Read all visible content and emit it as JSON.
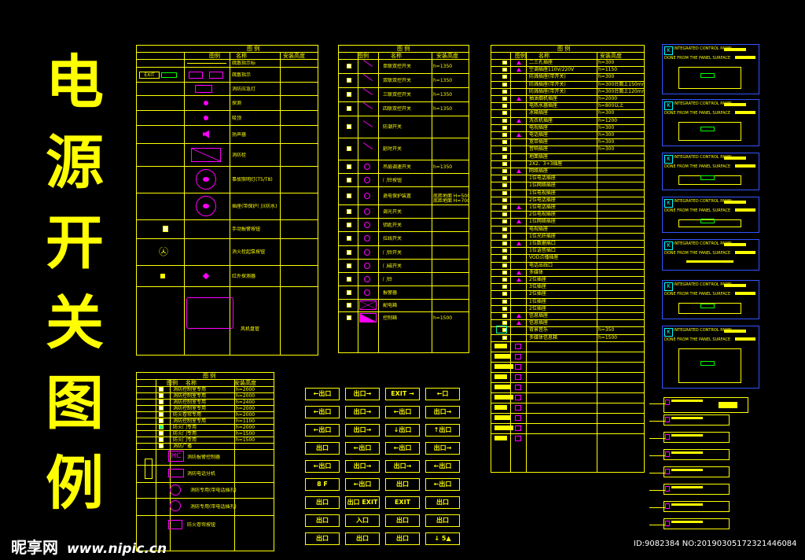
{
  "title_chars": [
    "电",
    "源",
    "开",
    "关",
    "图",
    "例"
  ],
  "legend_header": "图 例",
  "col_headers": {
    "symbol": "图例",
    "name": "名称",
    "install": "安装高度"
  },
  "table_a": {
    "rows": [
      {
        "name": "疏散指示标"
      },
      {
        "name": "疏散指示"
      },
      {
        "name": "消防应急灯"
      },
      {
        "name": "探测"
      },
      {
        "name": "吸顶"
      },
      {
        "name": "扬声器"
      },
      {
        "name": "消防栓"
      },
      {
        "name": "事故照明灯(T5/T8)"
      },
      {
        "name": "插座(带保护门)(防水)"
      },
      {
        "name": "手动报警按钮"
      },
      {
        "name": "消火栓起泵按钮"
      },
      {
        "name": "红外探测器"
      },
      {
        "name": "风机盘管"
      }
    ],
    "exit_label": "EXIT"
  },
  "table_b": {
    "rows": [
      {
        "name": "单联双控开关",
        "h": "h=1350"
      },
      {
        "name": "双联双控开关",
        "h": "h=1350"
      },
      {
        "name": "三联双控开关",
        "h": "h=1350"
      },
      {
        "name": "四联双控开关",
        "h": "h=1350"
      },
      {
        "name": "防潮开关",
        "h": ""
      },
      {
        "name": "延时开关",
        "h": ""
      },
      {
        "name": "吊扇调速开关",
        "h": "h=1350"
      },
      {
        "name": "门铃按钮",
        "h": ""
      },
      {
        "name": "退电保护装置",
        "h": "底距地面 H=500"
      },
      {
        "name": "调光开关",
        "h": ""
      },
      {
        "name": "钥匙开关",
        "h": ""
      },
      {
        "name": "拉线开关",
        "h": ""
      },
      {
        "name": "门铃开关",
        "h": ""
      },
      {
        "name": "门磁开关",
        "h": ""
      },
      {
        "name": "门铃",
        "h": ""
      },
      {
        "name": "报警器",
        "h": ""
      },
      {
        "name": "配电箱",
        "h": ""
      },
      {
        "name": "控制箱",
        "h": "h=1500"
      }
    ],
    "install_note2": "底距地面 H=700"
  },
  "table_c": {
    "rows": [
      {
        "name": "二三孔插座",
        "h": "h=300"
      },
      {
        "name": "空调插座110V/220V",
        "h": "h=1150"
      },
      {
        "name": "防溅插座(带开关)",
        "h": "h=300"
      },
      {
        "name": "防溅插座(带开关)",
        "h": "h=300台面上150mm"
      },
      {
        "name": "防溅插座(带开关)",
        "h": "h=300台面上120mm"
      },
      {
        "name": "抽油烟机插座",
        "h": "h=2000"
      },
      {
        "name": "电热水器插座",
        "h": "h=800以上"
      },
      {
        "name": "冰箱插座",
        "h": "h=300"
      },
      {
        "name": "洗衣机插座",
        "h": "h=1200"
      },
      {
        "name": "电视插座",
        "h": "h=300"
      },
      {
        "name": "电话插座",
        "h": "h=300"
      },
      {
        "name": "宽带插座",
        "h": "h=300"
      },
      {
        "name": "音响插座",
        "h": "h=300"
      },
      {
        "name": "地面插座",
        "h": ""
      },
      {
        "name": "2X2、3+3插座",
        "h": ""
      },
      {
        "name": "网络插座",
        "h": ""
      },
      {
        "name": "1位电话插座",
        "h": ""
      },
      {
        "name": "1位网络插座",
        "h": ""
      },
      {
        "name": "1位电视插座",
        "h": ""
      },
      {
        "name": "2位电话插座",
        "h": ""
      },
      {
        "name": "1位电话插座",
        "h": ""
      },
      {
        "name": "2位电视插座",
        "h": ""
      },
      {
        "name": "1位网络插座",
        "h": ""
      },
      {
        "name": "电视插座",
        "h": ""
      },
      {
        "name": "1位光纤插座",
        "h": ""
      },
      {
        "name": "1位数据插口",
        "h": ""
      },
      {
        "name": "1位语音插口",
        "h": ""
      },
      {
        "name": "VOD点播插座",
        "h": ""
      },
      {
        "name": "电话出线口",
        "h": ""
      },
      {
        "name": "多媒体",
        "h": ""
      },
      {
        "name": "2位插座",
        "h": ""
      },
      {
        "name": "3位插座",
        "h": ""
      },
      {
        "name": "2位插座",
        "h": ""
      },
      {
        "name": "1位插座",
        "h": ""
      },
      {
        "name": "2位插座",
        "h": ""
      },
      {
        "name": "信息插座",
        "h": ""
      },
      {
        "name": "信息插座",
        "h": ""
      },
      {
        "name": "背景音乐",
        "h": "h=350"
      },
      {
        "name": "多媒体信息箱",
        "h": "h=1500"
      }
    ]
  },
  "table_d": {
    "rows": [
      {
        "name": "消防控制室专用",
        "h": "h=2000"
      },
      {
        "name": "消防控制室专用",
        "h": "h=2000"
      },
      {
        "name": "消防控制室专用",
        "h": "h=2400"
      },
      {
        "name": "消防控制室专用",
        "h": "h=2000"
      },
      {
        "name": "防火卷帘专用",
        "h": "h=2000"
      },
      {
        "name": "消防控制室专用",
        "h": "h=1100"
      },
      {
        "name": "防火门专用",
        "h": "h=2000"
      },
      {
        "name": "防火门专用",
        "h": "h=1500"
      },
      {
        "name": "防火门专用",
        "h": "h=1500"
      },
      {
        "name": "消防广播",
        "h": ""
      }
    ],
    "extra_rows": [
      {
        "name": "消防报警控制器"
      },
      {
        "name": "消防电话分机"
      },
      {
        "name": "消防专用(带电话插孔)"
      },
      {
        "name": "消防专用(带电话插孔)"
      },
      {
        "name": "防火卷帘按钮"
      }
    ],
    "hc_label": "HC"
  },
  "exit_signs": [
    [
      "←出口",
      "出口→",
      "EXIT →",
      "←口"
    ],
    [
      "←出口",
      "出口→",
      "←出口",
      "出口→"
    ],
    [
      "←出口",
      "出口→",
      "↓出口",
      "↑出口"
    ],
    [
      "出口",
      "←出口",
      "←出口",
      "出口→"
    ],
    [
      "←出口",
      "出口→",
      "出口→",
      "←出口"
    ],
    [
      "8 F",
      "←出口",
      "出口",
      "←出口"
    ],
    [
      "出口",
      "出口 EXIT",
      "EXIT",
      "出口"
    ],
    [
      "出口",
      "入口",
      "出口",
      "出口"
    ],
    [
      "出口",
      "出口",
      "出口",
      "↓ 5▲"
    ]
  ],
  "panels": [
    {
      "title": "INTEGRATED CONTROL PANEL",
      "sub": "DONE FROM THE PANEL SURFACE"
    },
    {
      "title": "INTEGRATED CONTROL PANEL",
      "sub": "DONE FROM THE PANEL SURFACE"
    },
    {
      "title": "INTEGRATED CONTROL PANEL",
      "sub": "DONE FROM THE PANEL SURFACE"
    },
    {
      "title": "INTEGRATED CONTROL PANEL",
      "sub": "DONE FROM THE PANEL SURFACE"
    },
    {
      "title": "INTEGRATED CONTROL PANEL",
      "sub": "DONE FROM THE PANEL SURFACE"
    },
    {
      "title": "INTEGRATED CONTROL PANEL",
      "sub": "DONE FROM THE PANEL SURFACE"
    },
    {
      "title": "INTEGRATED CONTROL PANEL",
      "sub": "DONE FROM THE PANEL SURFACE"
    }
  ],
  "watermark": {
    "logo": "昵享网",
    "url": "www.nipic.cn",
    "id": "ID:9082384 NO:20190305172321446084"
  },
  "colors": {
    "line": "#ffff00",
    "symbol": "#ff00ff",
    "panel": "#3355ff",
    "background": "#000000"
  }
}
